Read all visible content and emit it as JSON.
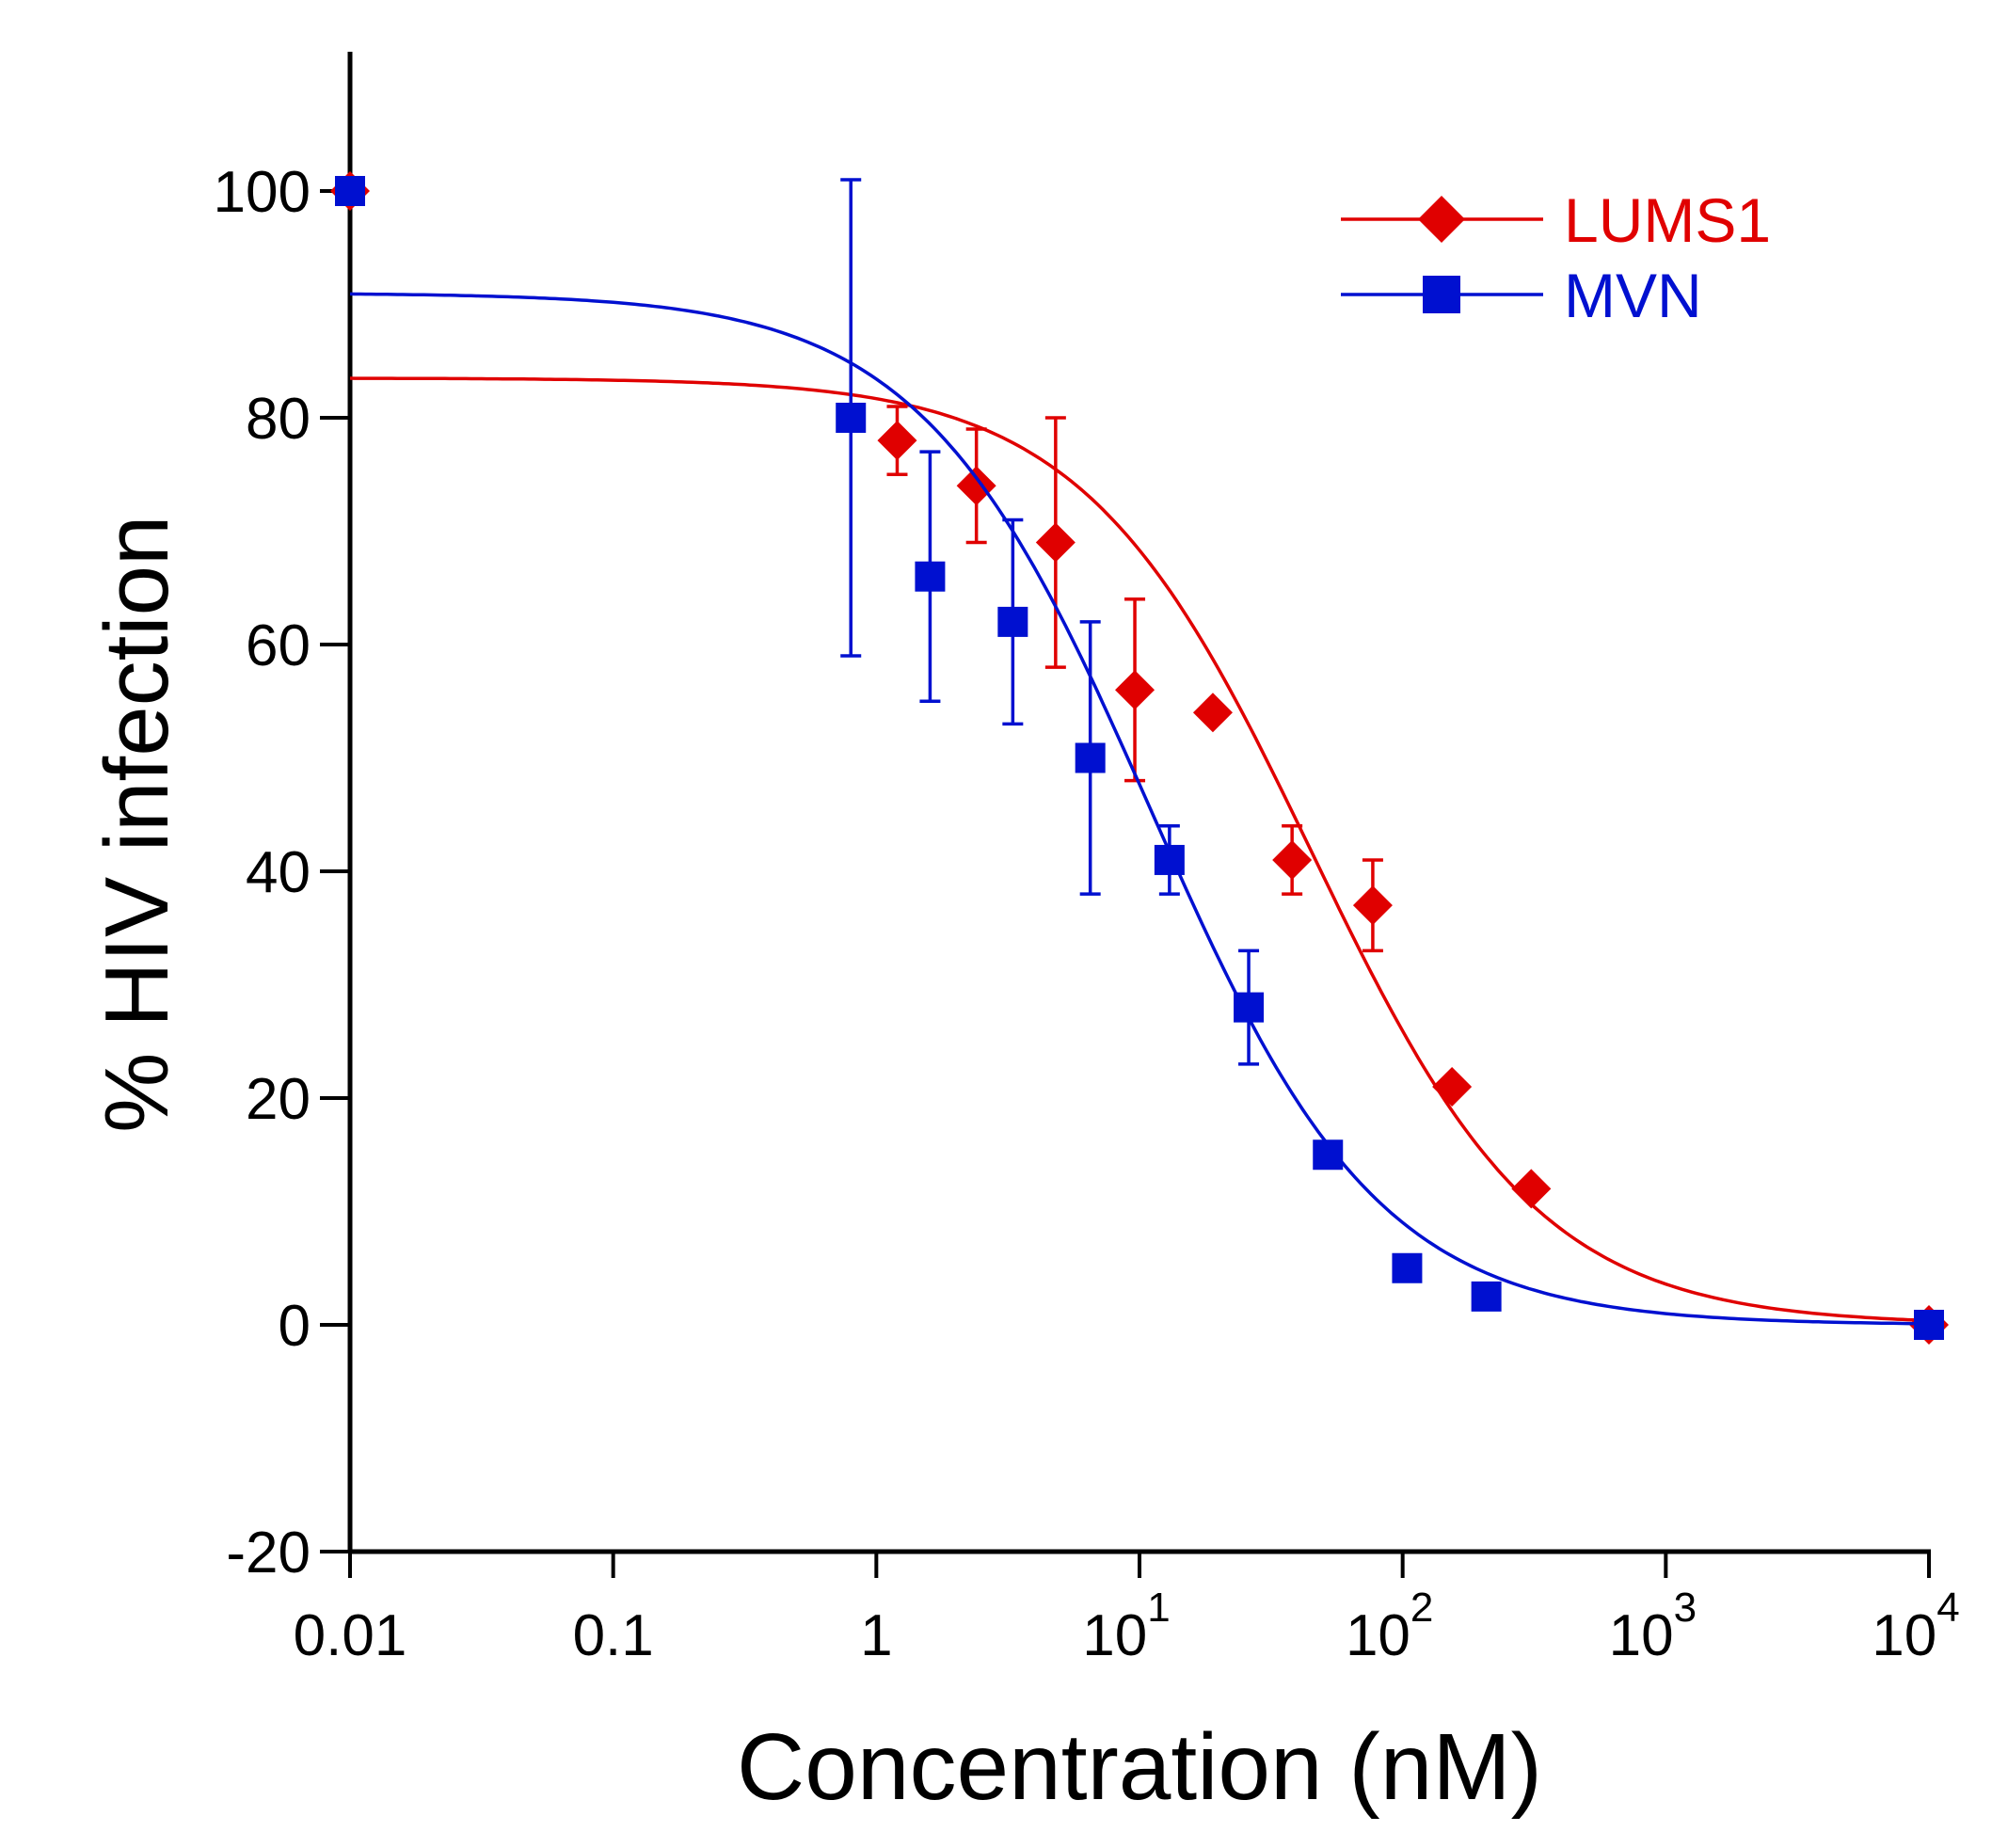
{
  "chart_data": {
    "type": "scatter",
    "title": "",
    "xlabel": "Concentration (nM)",
    "ylabel": "% HIV infection",
    "xscale": "log",
    "xlim": [
      0.01,
      10000
    ],
    "ylim": [
      -20,
      110
    ],
    "legend_position": "top-right",
    "x_ticks": [
      {
        "value": 0.01,
        "label": "0.01",
        "sup": ""
      },
      {
        "value": 0.1,
        "label": "0.1",
        "sup": ""
      },
      {
        "value": 1,
        "label": "1",
        "sup": ""
      },
      {
        "value": 10,
        "label": "10",
        "sup": "1"
      },
      {
        "value": 100,
        "label": "10",
        "sup": "2"
      },
      {
        "value": 1000,
        "label": "10",
        "sup": "3"
      },
      {
        "value": 10000,
        "label": "10",
        "sup": "4"
      }
    ],
    "y_ticks": [
      {
        "value": -20,
        "label": "-20"
      },
      {
        "value": 0,
        "label": "0"
      },
      {
        "value": 20,
        "label": "20"
      },
      {
        "value": 40,
        "label": "40"
      },
      {
        "value": 60,
        "label": "60"
      },
      {
        "value": 80,
        "label": "80"
      },
      {
        "value": 100,
        "label": "100"
      }
    ],
    "series": [
      {
        "name": "LUMS1",
        "color": "#e00000",
        "marker": "diamond",
        "x": [
          0.01,
          1.2,
          2.4,
          4.8,
          9.6,
          19,
          38,
          77,
          154,
          308,
          10000
        ],
        "y": [
          100,
          78,
          74,
          69,
          56,
          54,
          41,
          37,
          21,
          12,
          0
        ],
        "error": [
          null,
          3,
          5,
          11,
          8,
          null,
          3,
          4,
          null,
          null,
          null
        ],
        "fit": {
          "top": 83.5,
          "bottom": 0,
          "ic50": 45,
          "hill": 1.0
        }
      },
      {
        "name": "MVN",
        "color": "#0010d0",
        "marker": "square",
        "x": [
          0.01,
          0.8,
          1.6,
          3.3,
          6.5,
          13,
          26,
          52,
          104,
          208,
          10000
        ],
        "y": [
          100,
          80,
          66,
          62,
          50,
          41,
          28,
          15,
          5,
          2.5,
          0
        ],
        "error": [
          null,
          21,
          11,
          9,
          12,
          3,
          5,
          null,
          null,
          null,
          null
        ],
        "fit": {
          "top": 91,
          "bottom": 0,
          "ic50": 11,
          "hill": 1.0
        }
      }
    ]
  }
}
